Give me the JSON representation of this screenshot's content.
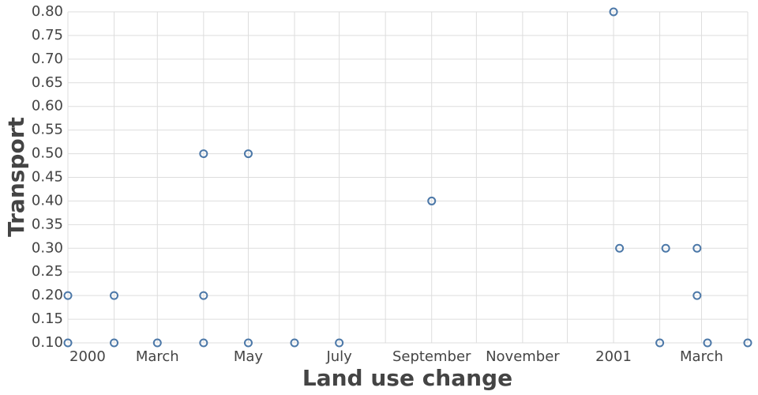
{
  "chart_data": {
    "type": "scatter",
    "x_label": "Land use change",
    "y_label": "Transport",
    "x": [
      "2000-01-01",
      "2000-01-01",
      "2000-02-01",
      "2000-02-01",
      "2000-03-01",
      "2000-04-01",
      "2000-04-01",
      "2000-04-01",
      "2000-05-01",
      "2000-05-01",
      "2000-06-01",
      "2000-07-01",
      "2000-09-01",
      "2001-01-01",
      "2001-01-05",
      "2001-02-01",
      "2001-02-05",
      "2001-02-26",
      "2001-02-26",
      "2001-03-05",
      "2001-04-01"
    ],
    "values": [
      0.2,
      0.1,
      0.2,
      0.1,
      0.1,
      0.5,
      0.2,
      0.1,
      0.5,
      0.1,
      0.1,
      0.1,
      0.4,
      0.8,
      0.3,
      0.1,
      0.3,
      0.3,
      0.2,
      0.1,
      0.1
    ],
    "color": "#4c78a8",
    "xlim": [
      "2000-01-01",
      "2001-04-01"
    ],
    "xticks": [
      {
        "value": "2000-01-01",
        "label": "2000"
      },
      {
        "value": "2000-02-01",
        "label": null
      },
      {
        "value": "2000-03-01",
        "label": "March"
      },
      {
        "value": "2000-04-01",
        "label": null
      },
      {
        "value": "2000-05-01",
        "label": "May"
      },
      {
        "value": "2000-06-01",
        "label": null
      },
      {
        "value": "2000-07-01",
        "label": "July"
      },
      {
        "value": "2000-08-01",
        "label": null
      },
      {
        "value": "2000-09-01",
        "label": "September"
      },
      {
        "value": "2000-10-01",
        "label": null
      },
      {
        "value": "2000-11-01",
        "label": "November"
      },
      {
        "value": "2000-12-01",
        "label": null
      },
      {
        "value": "2001-01-01",
        "label": "2001"
      },
      {
        "value": "2001-02-01",
        "label": null
      },
      {
        "value": "2001-03-01",
        "label": "March"
      },
      {
        "value": "2001-04-01",
        "label": null
      }
    ],
    "ylim": [
      0.1,
      0.8
    ],
    "yticks": [
      {
        "value": 0.1,
        "label": "0.10"
      },
      {
        "value": 0.15,
        "label": "0.15"
      },
      {
        "value": 0.2,
        "label": "0.20"
      },
      {
        "value": 0.25,
        "label": "0.25"
      },
      {
        "value": 0.3,
        "label": "0.30"
      },
      {
        "value": 0.35,
        "label": "0.35"
      },
      {
        "value": 0.4,
        "label": "0.40"
      },
      {
        "value": 0.45,
        "label": "0.45"
      },
      {
        "value": 0.5,
        "label": "0.50"
      },
      {
        "value": 0.55,
        "label": "0.55"
      },
      {
        "value": 0.6,
        "label": "0.60"
      },
      {
        "value": 0.65,
        "label": "0.65"
      },
      {
        "value": 0.7,
        "label": "0.70"
      },
      {
        "value": 0.75,
        "label": "0.75"
      },
      {
        "value": 0.8,
        "label": "0.80"
      }
    ],
    "grid": true
  }
}
